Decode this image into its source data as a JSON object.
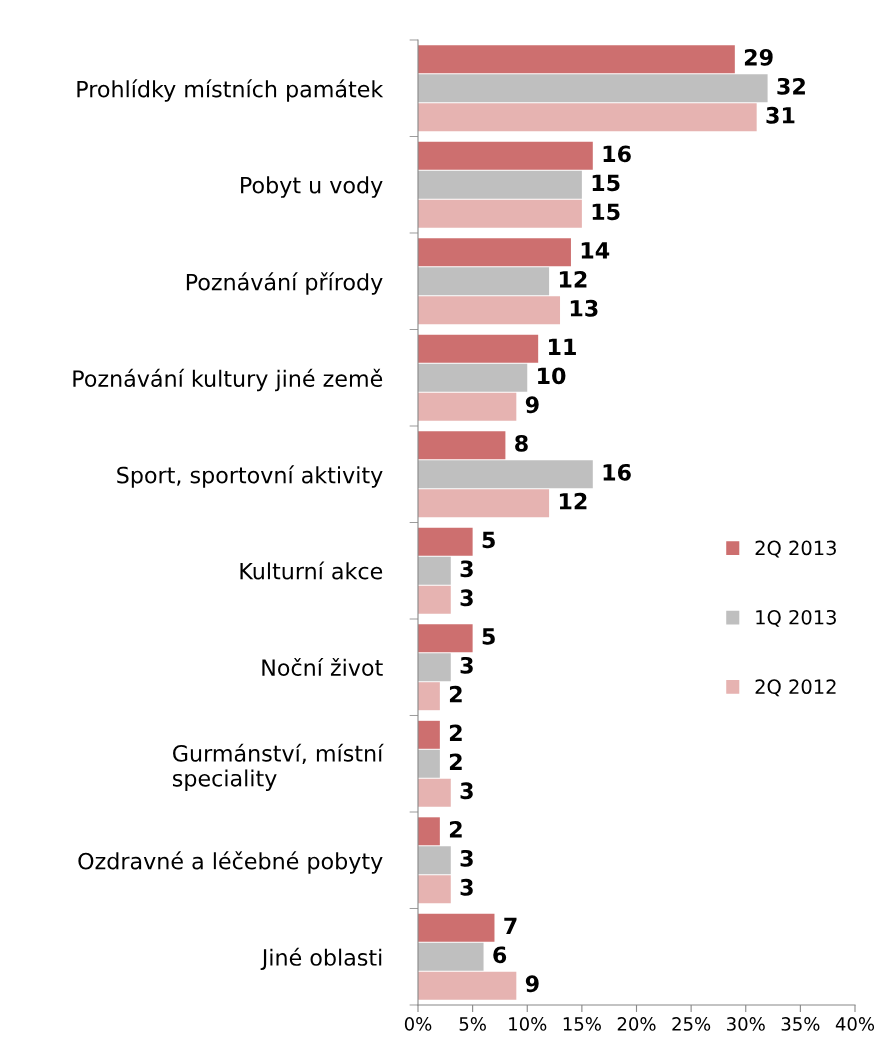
{
  "chart_data": {
    "type": "bar",
    "orientation": "horizontal",
    "categories": [
      "Prohlídky místních památek",
      "Pobyt u vody",
      "Poznávání přírody",
      "Poznávání kultury jiné země",
      "Sport, sportovní aktivity",
      "Kulturní akce",
      "Noční život",
      "Gurmánství, místní\nspeciality",
      "Ozdravné a léčebné pobyty",
      "Jiné oblasti"
    ],
    "series": [
      {
        "name": "2Q 2013",
        "color": "#cd6f6f",
        "values": [
          29,
          16,
          14,
          11,
          8,
          5,
          5,
          2,
          2,
          7
        ]
      },
      {
        "name": "1Q 2013",
        "color": "#bfbfbf",
        "values": [
          32,
          15,
          12,
          10,
          16,
          3,
          3,
          2,
          3,
          6
        ]
      },
      {
        "name": "2Q 2012",
        "color": "#e6b3b1",
        "values": [
          31,
          15,
          13,
          9,
          12,
          3,
          2,
          3,
          3,
          9
        ]
      }
    ],
    "xlim": [
      0,
      40
    ],
    "xticks": [
      {
        "value": 0,
        "label": "0%"
      },
      {
        "value": 5,
        "label": "5%"
      },
      {
        "value": 10,
        "label": "10%"
      },
      {
        "value": 15,
        "label": "15%"
      },
      {
        "value": 20,
        "label": "20%"
      },
      {
        "value": 25,
        "label": "25%"
      },
      {
        "value": 30,
        "label": "30%"
      },
      {
        "value": 35,
        "label": "35%"
      },
      {
        "value": 40,
        "label": "40%"
      }
    ],
    "data_labels": true,
    "legend": "right",
    "grid": false
  }
}
